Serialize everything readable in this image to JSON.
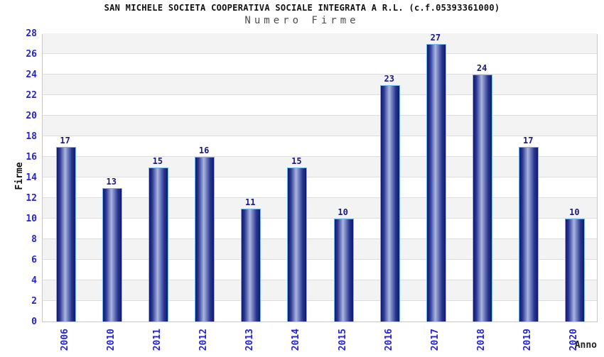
{
  "header": {
    "title": "SAN MICHELE SOCIETA COOPERATIVA SOCIALE INTEGRATA A R.L. (c.f.05393361000)",
    "subtitle": "Numero Firme"
  },
  "chart_data": {
    "type": "bar",
    "title": "SAN MICHELE SOCIETA COOPERATIVA SOCIALE INTEGRATA A R.L. (c.f.05393361000)",
    "subtitle": "Numero Firme",
    "categories": [
      "2006",
      "2010",
      "2011",
      "2012",
      "2013",
      "2014",
      "2015",
      "2016",
      "2017",
      "2018",
      "2019",
      "2020"
    ],
    "values": [
      17,
      13,
      15,
      16,
      11,
      15,
      10,
      23,
      27,
      24,
      17,
      10
    ],
    "xlabel": "Anno",
    "ylabel": "Firme",
    "ylim": [
      0,
      28
    ],
    "ytick_step": 2,
    "grid": true,
    "banded_background": true,
    "legend": "none",
    "value_labels_shown": true
  },
  "colors": {
    "tick_label_blue": "#2424d6",
    "value_label_navy": "#1a1a80",
    "bar_dark": "#10196b",
    "bar_mid_dark": "#2a3791",
    "bar_light": "#aab5e0",
    "bar_outline": "#74b7f0",
    "band_gray": "#f3f3f3",
    "band_white": "#ffffff",
    "gridline": "#dedede",
    "plot_border": "#c8c8c8",
    "title_color": "#111111",
    "subtitle_color": "#4d4d4d",
    "xlabel_color": "#222222"
  }
}
